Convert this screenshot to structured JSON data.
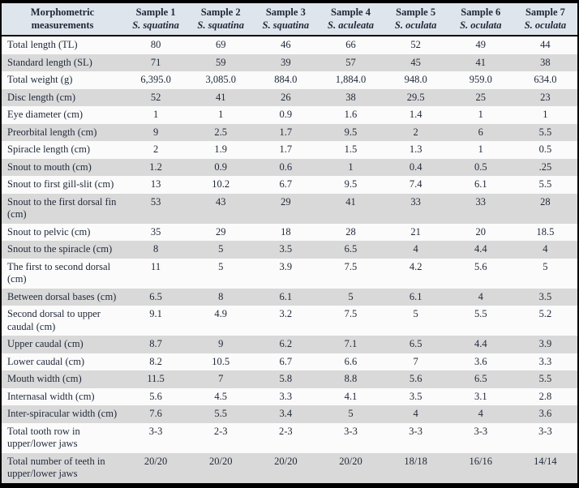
{
  "table": {
    "corner_header": "Morphometric measurements",
    "columns": [
      {
        "sample": "Sample 1",
        "species": "S. squatina"
      },
      {
        "sample": "Sample 2",
        "species": "S. squatina"
      },
      {
        "sample": "Sample 3",
        "species": "S. squatina"
      },
      {
        "sample": "Sample 4",
        "species": "S. aculeata"
      },
      {
        "sample": "Sample 5",
        "species": "S. oculata"
      },
      {
        "sample": "Sample 6",
        "species": "S. oculata"
      },
      {
        "sample": "Sample 7",
        "species": "S. oculata"
      }
    ],
    "rows": [
      {
        "label": "Total length (TL)",
        "values": [
          "80",
          "69",
          "46",
          "66",
          "52",
          "49",
          "44"
        ]
      },
      {
        "label": "Standard length (SL)",
        "values": [
          "71",
          "59",
          "39",
          "57",
          "45",
          "41",
          "38"
        ]
      },
      {
        "label": "Total weight (g)",
        "values": [
          "6,395.0",
          "3,085.0",
          "884.0",
          "1,884.0",
          "948.0",
          "959.0",
          "634.0"
        ]
      },
      {
        "label": "Disc length (cm)",
        "values": [
          "52",
          "41",
          "26",
          "38",
          "29.5",
          "25",
          "23"
        ]
      },
      {
        "label": "Eye diameter (cm)",
        "values": [
          "1",
          "1",
          "0.9",
          "1.6",
          "1.4",
          "1",
          "1"
        ]
      },
      {
        "label": "Preorbital length (cm)",
        "values": [
          "9",
          "2.5",
          "1.7",
          "9.5",
          "2",
          "6",
          "5.5"
        ]
      },
      {
        "label": "Spiracle length (cm)",
        "values": [
          "2",
          "1.9",
          "1.7",
          "1.5",
          "1.3",
          "1",
          "0.5"
        ]
      },
      {
        "label": "Snout to mouth (cm)",
        "values": [
          "1.2",
          "0.9",
          "0.6",
          "1",
          "0.4",
          "0.5",
          ".25"
        ]
      },
      {
        "label": "Snout to first gill-slit (cm)",
        "values": [
          "13",
          "10.2",
          "6.7",
          "9.5",
          "7.4",
          "6.1",
          "5.5"
        ]
      },
      {
        "label": "Snout to the first dorsal fin (cm)",
        "values": [
          "53",
          "43",
          "29",
          "41",
          "33",
          "33",
          "28"
        ]
      },
      {
        "label": "Snout to pelvic (cm)",
        "values": [
          "35",
          "29",
          "18",
          "28",
          "21",
          "20",
          "18.5"
        ]
      },
      {
        "label": "Snout to the spiracle (cm)",
        "values": [
          "8",
          "5",
          "3.5",
          "6.5",
          "4",
          "4.4",
          "4"
        ]
      },
      {
        "label": "The first to second dorsal (cm)",
        "values": [
          "11",
          "5",
          "3.9",
          "7.5",
          "4.2",
          "5.6",
          "5"
        ]
      },
      {
        "label": "Between dorsal bases (cm)",
        "values": [
          "6.5",
          "8",
          "6.1",
          "5",
          "6.1",
          "4",
          "3.5"
        ]
      },
      {
        "label": "Second dorsal to upper caudal (cm)",
        "values": [
          "9.1",
          "4.9",
          "3.2",
          "7.5",
          "5",
          "5.5",
          "5.2"
        ]
      },
      {
        "label": "Upper caudal (cm)",
        "values": [
          "8.7",
          "9",
          "6.2",
          "7.1",
          "6.5",
          "4.4",
          "3.9"
        ]
      },
      {
        "label": "Lower caudal (cm)",
        "values": [
          "8.2",
          "10.5",
          "6.7",
          "6.6",
          "7",
          "3.6",
          "3.3"
        ]
      },
      {
        "label": "Mouth width (cm)",
        "values": [
          "11.5",
          "7",
          "5.8",
          "8.8",
          "5.6",
          "6.5",
          "5.5"
        ]
      },
      {
        "label": "Internasal width (cm)",
        "values": [
          "5.6",
          "4.5",
          "3.3",
          "4.1",
          "3.5",
          "3.1",
          "2.8"
        ]
      },
      {
        "label": "Inter-spiracular width (cm)",
        "values": [
          "7.6",
          "5.5",
          "3.4",
          "5",
          "4",
          "4",
          "3.6"
        ]
      },
      {
        "label": "Total tooth row in upper/lower jaws",
        "values": [
          "3-3",
          "2-3",
          "2-3",
          "3-3",
          "3-3",
          "3-3",
          "3-3"
        ]
      },
      {
        "label": "Total number of teeth in upper/lower jaws",
        "values": [
          "20/20",
          "20/20",
          "20/20",
          "20/20",
          "18/18",
          "16/16",
          "14/14"
        ]
      }
    ],
    "colors": {
      "header_bg": "#dfe5ec",
      "stripe_bg": "#d9d9d9",
      "row_bg": "#fbfbfb",
      "border": "#000000",
      "text": "#1f2838"
    }
  }
}
